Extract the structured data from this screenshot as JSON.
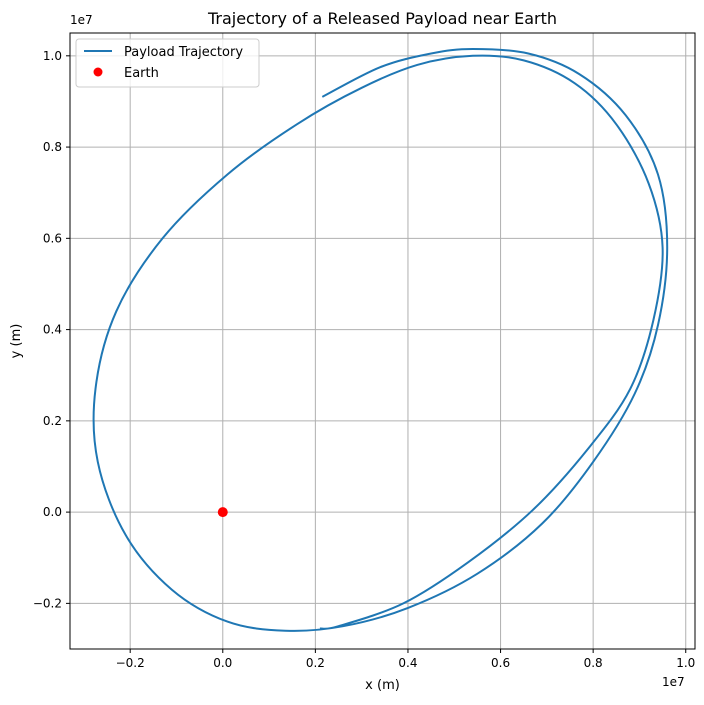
{
  "chart_data": {
    "type": "line",
    "title": "Trajectory of a Released Payload near Earth",
    "xlabel": "x (m)",
    "ylabel": "y (m)",
    "x_offset_label": "1e7",
    "y_offset_label": "1e7",
    "xlim": [
      -3300000.0,
      10200000.0
    ],
    "ylim": [
      -3000000.0,
      10500000.0
    ],
    "x_ticks": [
      -0.2,
      0.0,
      0.2,
      0.4,
      0.6,
      0.8,
      1.0
    ],
    "x_tick_labels": [
      "−0.2",
      "0.0",
      "0.2",
      "0.4",
      "0.6",
      "0.8",
      "1.0"
    ],
    "y_ticks": [
      -0.2,
      0.0,
      0.2,
      0.4,
      0.6,
      0.8,
      1.0
    ],
    "y_tick_labels": [
      "−0.2",
      "0.0",
      "0.2",
      "0.4",
      "0.6",
      "0.8",
      "1.0"
    ],
    "grid": true,
    "legend_position": "top-left",
    "series": [
      {
        "name": "Payload Trajectory",
        "color": "#1f77b4",
        "x": [
          2150000.0,
          3400000.0,
          4500000.0,
          5400000.0,
          6600000.0,
          7700000.0,
          8700000.0,
          9400000.0,
          9600000.0,
          9400000.0,
          8900000.0,
          8000000.0,
          6900000.0,
          5500000.0,
          4000000.0,
          2600000.0,
          1350000.0,
          100000.0,
          -1100000.0,
          -2100000.0,
          -2700000.0,
          -2750000.0,
          -2300000.0,
          -1300000.0,
          100000.0,
          1600000.0,
          3000000.0,
          4200000.0,
          5400000.0,
          6500000.0,
          7600000.0,
          8500000.0,
          9200000.0,
          9500000.0,
          9300000.0,
          8800000.0,
          7900000.0,
          6700000.0,
          5300000.0,
          3900000.0,
          2500000.0,
          2100000.0
        ],
        "y": [
          9100000.0,
          9750000.0,
          10050000.0,
          10150000.0,
          10050000.0,
          9600000.0,
          8700000.0,
          7400000.0,
          5800000.0,
          4100000.0,
          2600000.0,
          1100000.0,
          -250000.0,
          -1350000.0,
          -2100000.0,
          -2500000.0,
          -2600000.0,
          -2400000.0,
          -1700000.0,
          -500000.0,
          1100000.0,
          2700000.0,
          4400000.0,
          6000000.0,
          7400000.0,
          8500000.0,
          9300000.0,
          9800000.0,
          10000000.0,
          9900000.0,
          9400000.0,
          8500000.0,
          7200000.0,
          5800000.0,
          4200000.0,
          2700000.0,
          1400000.0,
          50000.0,
          -1100000.0,
          -2000000.0,
          -2500000.0,
          -2550000.0
        ]
      },
      {
        "name": "Earth",
        "color": "#ff0000",
        "marker": "circle",
        "x": [
          0
        ],
        "y": [
          0
        ]
      }
    ]
  }
}
